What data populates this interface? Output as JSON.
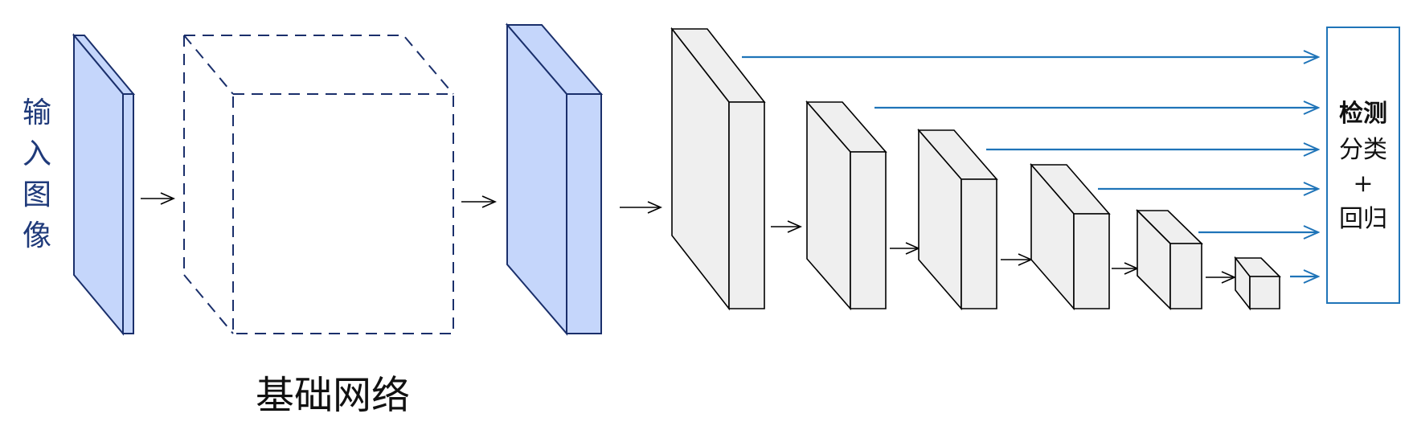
{
  "input_label": [
    "输",
    "入",
    "图",
    "像"
  ],
  "base_network_label": "基础网络",
  "detection_box": {
    "line1": "检测",
    "line2": "分类",
    "line3": "+",
    "line4": "回归"
  },
  "colors": {
    "input_fill": "#c5d6fb",
    "input_stroke": "#1a2f6b",
    "feature_fill": "#efefef",
    "feature_stroke": "#000000",
    "dashed_stroke": "#1a2f6b",
    "arrow_blue": "#1f74b8",
    "arrow_black": "#000000",
    "input_text": "#1f3a7a"
  }
}
